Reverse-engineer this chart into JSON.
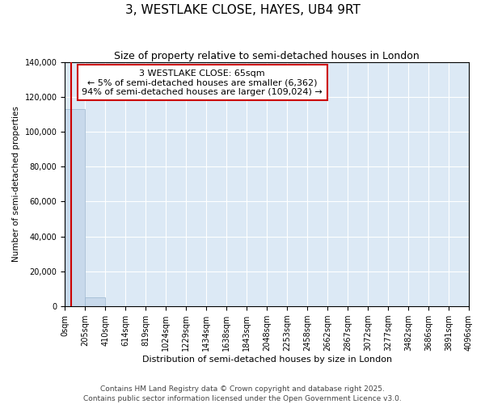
{
  "title": "3, WESTLAKE CLOSE, HAYES, UB4 9RT",
  "subtitle": "Size of property relative to semi-detached houses in London",
  "xlabel": "Distribution of semi-detached houses by size in London",
  "ylabel": "Number of semi-detached properties",
  "annotation_line1": "3 WESTLAKE CLOSE: 65sqm",
  "annotation_line2": "← 5% of semi-detached houses are smaller (6,362)",
  "annotation_line3": "94% of semi-detached houses are larger (109,024) →",
  "footer_line1": "Contains HM Land Registry data © Crown copyright and database right 2025.",
  "footer_line2": "Contains public sector information licensed under the Open Government Licence v3.0.",
  "bin_edges": [
    0,
    205,
    410,
    614,
    819,
    1024,
    1229,
    1434,
    1638,
    1843,
    2048,
    2253,
    2458,
    2662,
    2867,
    3072,
    3277,
    3482,
    3686,
    3891,
    4096
  ],
  "bin_labels": [
    "0sqm",
    "205sqm",
    "410sqm",
    "614sqm",
    "819sqm",
    "1024sqm",
    "1229sqm",
    "1434sqm",
    "1638sqm",
    "1843sqm",
    "2048sqm",
    "2253sqm",
    "2458sqm",
    "2662sqm",
    "2867sqm",
    "3072sqm",
    "3277sqm",
    "3482sqm",
    "3686sqm",
    "3891sqm",
    "4096sqm"
  ],
  "bar_heights": [
    113000,
    5000,
    100,
    50,
    20,
    10,
    5,
    5,
    3,
    2,
    2,
    1,
    1,
    1,
    1,
    1,
    0,
    0,
    0,
    0
  ],
  "bar_color": "#c8d9eb",
  "bar_edge_color": "#9ab5ce",
  "property_size": 65,
  "property_line_color": "#cc0000",
  "annotation_box_color": "#cc0000",
  "plot_bg_color": "#dce9f5",
  "ylim": [
    0,
    140000
  ],
  "yticks": [
    0,
    20000,
    40000,
    60000,
    80000,
    100000,
    120000,
    140000
  ],
  "title_fontsize": 11,
  "subtitle_fontsize": 9,
  "xlabel_fontsize": 8,
  "ylabel_fontsize": 7.5,
  "tick_fontsize": 7,
  "footer_fontsize": 6.5,
  "annotation_fontsize": 8
}
